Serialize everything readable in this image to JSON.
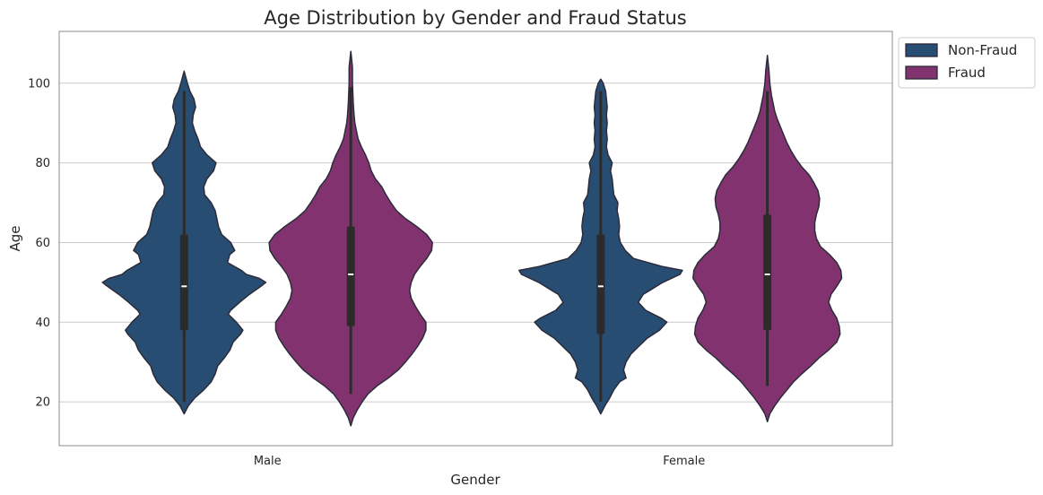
{
  "chart_data": {
    "type": "violin",
    "title": "Age Distribution by Gender and Fraud Status",
    "xlabel": "Gender",
    "ylabel": "Age",
    "categories": [
      "Male",
      "Female"
    ],
    "ylim": [
      9,
      113
    ],
    "yticks": [
      20,
      40,
      60,
      80,
      100
    ],
    "grid": "horizontal",
    "legend_position": "upper-right-outside",
    "series": [
      {
        "name": "Non-Fraud",
        "color": "#284d73",
        "violins": [
          {
            "category": "Male",
            "range": [
              17,
              103
            ],
            "whisker": [
              20,
              98
            ],
            "q1": 38,
            "median": 49,
            "q3": 62,
            "profile": [
              [
                17,
                0.0
              ],
              [
                19,
                0.05
              ],
              [
                21,
                0.13
              ],
              [
                23,
                0.24
              ],
              [
                25,
                0.33
              ],
              [
                27,
                0.38
              ],
              [
                29,
                0.41
              ],
              [
                31,
                0.49
              ],
              [
                33,
                0.56
              ],
              [
                35,
                0.6
              ],
              [
                37,
                0.69
              ],
              [
                38,
                0.72
              ],
              [
                40,
                0.64
              ],
              [
                42,
                0.54
              ],
              [
                43,
                0.57
              ],
              [
                45,
                0.68
              ],
              [
                47,
                0.8
              ],
              [
                49,
                0.94
              ],
              [
                50,
                1.0
              ],
              [
                51,
                0.92
              ],
              [
                52,
                0.76
              ],
              [
                53,
                0.7
              ],
              [
                55,
                0.53
              ],
              [
                57,
                0.56
              ],
              [
                58,
                0.62
              ],
              [
                60,
                0.57
              ],
              [
                62,
                0.46
              ],
              [
                64,
                0.42
              ],
              [
                66,
                0.4
              ],
              [
                68,
                0.38
              ],
              [
                70,
                0.33
              ],
              [
                72,
                0.25
              ],
              [
                74,
                0.24
              ],
              [
                76,
                0.28
              ],
              [
                78,
                0.36
              ],
              [
                80,
                0.39
              ],
              [
                82,
                0.28
              ],
              [
                84,
                0.2
              ],
              [
                86,
                0.17
              ],
              [
                88,
                0.13
              ],
              [
                90,
                0.1
              ],
              [
                92,
                0.11
              ],
              [
                94,
                0.14
              ],
              [
                96,
                0.12
              ],
              [
                98,
                0.07
              ],
              [
                100,
                0.04
              ],
              [
                103,
                0.0
              ]
            ]
          },
          {
            "category": "Female",
            "range": [
              17,
              101
            ],
            "whisker": [
              20,
              98
            ],
            "q1": 37,
            "median": 49,
            "q3": 62,
            "profile": [
              [
                17,
                0.0
              ],
              [
                19,
                0.05
              ],
              [
                21,
                0.11
              ],
              [
                23,
                0.16
              ],
              [
                25,
                0.23
              ],
              [
                26,
                0.31
              ],
              [
                28,
                0.28
              ],
              [
                30,
                0.31
              ],
              [
                32,
                0.37
              ],
              [
                34,
                0.47
              ],
              [
                36,
                0.57
              ],
              [
                38,
                0.72
              ],
              [
                40,
                0.81
              ],
              [
                41,
                0.74
              ],
              [
                43,
                0.55
              ],
              [
                45,
                0.46
              ],
              [
                47,
                0.52
              ],
              [
                48,
                0.6
              ],
              [
                50,
                0.76
              ],
              [
                52,
                0.97
              ],
              [
                53,
                1.0
              ],
              [
                54,
                0.75
              ],
              [
                56,
                0.4
              ],
              [
                58,
                0.3
              ],
              [
                60,
                0.24
              ],
              [
                62,
                0.22
              ],
              [
                64,
                0.23
              ],
              [
                66,
                0.22
              ],
              [
                68,
                0.2
              ],
              [
                70,
                0.21
              ],
              [
                72,
                0.16
              ],
              [
                74,
                0.15
              ],
              [
                76,
                0.14
              ],
              [
                78,
                0.12
              ],
              [
                80,
                0.14
              ],
              [
                82,
                0.09
              ],
              [
                84,
                0.07
              ],
              [
                86,
                0.08
              ],
              [
                88,
                0.07
              ],
              [
                90,
                0.08
              ],
              [
                92,
                0.07
              ],
              [
                94,
                0.08
              ],
              [
                96,
                0.07
              ],
              [
                98,
                0.06
              ],
              [
                100,
                0.03
              ],
              [
                101,
                0.0
              ]
            ]
          }
        ]
      },
      {
        "name": "Fraud",
        "color": "#82336f",
        "violins": [
          {
            "category": "Male",
            "range": [
              14,
              108
            ],
            "whisker": [
              22,
              99
            ],
            "q1": 39,
            "median": 52,
            "q3": 64,
            "profile": [
              [
                14,
                0.0
              ],
              [
                16,
                0.03
              ],
              [
                18,
                0.08
              ],
              [
                20,
                0.14
              ],
              [
                22,
                0.21
              ],
              [
                24,
                0.32
              ],
              [
                26,
                0.46
              ],
              [
                28,
                0.58
              ],
              [
                30,
                0.67
              ],
              [
                32,
                0.75
              ],
              [
                34,
                0.82
              ],
              [
                36,
                0.88
              ],
              [
                38,
                0.92
              ],
              [
                40,
                0.92
              ],
              [
                42,
                0.85
              ],
              [
                44,
                0.79
              ],
              [
                46,
                0.74
              ],
              [
                48,
                0.72
              ],
              [
                50,
                0.74
              ],
              [
                52,
                0.78
              ],
              [
                54,
                0.85
              ],
              [
                56,
                0.93
              ],
              [
                58,
                0.99
              ],
              [
                60,
                1.0
              ],
              [
                62,
                0.93
              ],
              [
                64,
                0.81
              ],
              [
                66,
                0.67
              ],
              [
                68,
                0.56
              ],
              [
                70,
                0.49
              ],
              [
                72,
                0.43
              ],
              [
                74,
                0.38
              ],
              [
                76,
                0.3
              ],
              [
                78,
                0.25
              ],
              [
                80,
                0.22
              ],
              [
                82,
                0.18
              ],
              [
                84,
                0.13
              ],
              [
                86,
                0.09
              ],
              [
                88,
                0.07
              ],
              [
                90,
                0.05
              ],
              [
                92,
                0.04
              ],
              [
                95,
                0.03
              ],
              [
                100,
                0.02
              ],
              [
                104,
                0.02
              ],
              [
                108,
                0.0
              ]
            ]
          },
          {
            "category": "Female",
            "range": [
              15,
              107
            ],
            "whisker": [
              24,
              98
            ],
            "q1": 38,
            "median": 52,
            "q3": 67,
            "profile": [
              [
                15,
                0.0
              ],
              [
                17,
                0.03
              ],
              [
                19,
                0.09
              ],
              [
                21,
                0.16
              ],
              [
                23,
                0.24
              ],
              [
                25,
                0.32
              ],
              [
                27,
                0.42
              ],
              [
                29,
                0.53
              ],
              [
                31,
                0.63
              ],
              [
                33,
                0.75
              ],
              [
                35,
                0.85
              ],
              [
                37,
                0.89
              ],
              [
                39,
                0.88
              ],
              [
                41,
                0.85
              ],
              [
                43,
                0.79
              ],
              [
                45,
                0.75
              ],
              [
                47,
                0.78
              ],
              [
                49,
                0.85
              ],
              [
                51,
                0.91
              ],
              [
                53,
                0.9
              ],
              [
                55,
                0.85
              ],
              [
                57,
                0.76
              ],
              [
                59,
                0.65
              ],
              [
                61,
                0.6
              ],
              [
                63,
                0.58
              ],
              [
                65,
                0.58
              ],
              [
                67,
                0.6
              ],
              [
                69,
                0.63
              ],
              [
                71,
                0.64
              ],
              [
                73,
                0.62
              ],
              [
                75,
                0.57
              ],
              [
                77,
                0.51
              ],
              [
                79,
                0.42
              ],
              [
                81,
                0.35
              ],
              [
                83,
                0.29
              ],
              [
                85,
                0.24
              ],
              [
                87,
                0.2
              ],
              [
                89,
                0.16
              ],
              [
                91,
                0.12
              ],
              [
                93,
                0.09
              ],
              [
                95,
                0.07
              ],
              [
                97,
                0.05
              ],
              [
                100,
                0.03
              ],
              [
                103,
                0.02
              ],
              [
                107,
                0.0
              ]
            ]
          }
        ]
      }
    ]
  }
}
